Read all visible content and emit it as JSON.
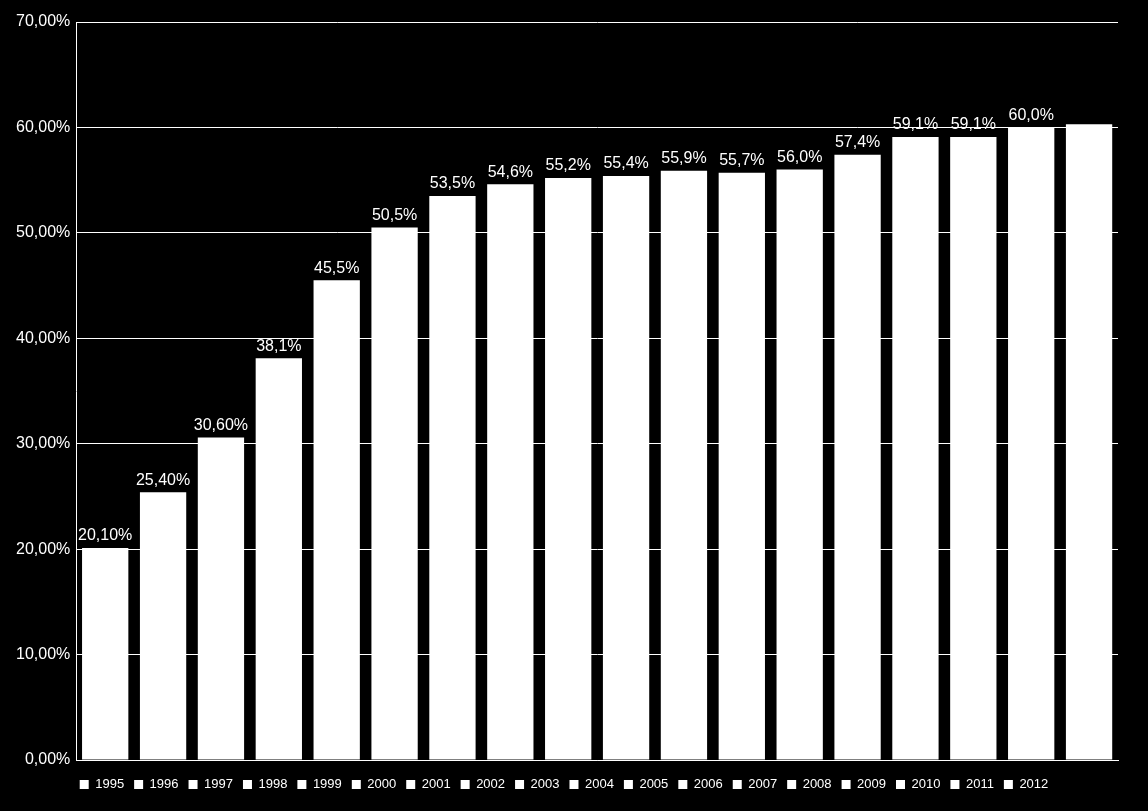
{
  "chart_data": {
    "type": "bar",
    "categories": [
      "1995",
      "1996",
      "1997",
      "1998",
      "1999",
      "2000",
      "2001",
      "2002",
      "2003",
      "2004",
      "2005",
      "2006",
      "2007",
      "2008",
      "2009",
      "2010",
      "2011",
      "2012"
    ],
    "values": [
      20.1,
      25.4,
      30.6,
      38.1,
      45.5,
      50.5,
      53.5,
      54.6,
      55.2,
      55.4,
      55.9,
      55.7,
      56.0,
      57.4,
      59.1,
      59.1,
      60.0,
      60.3
    ],
    "value_labels": [
      "20,10%",
      "25,40%",
      "30,60%",
      "38,1%",
      "45,5%",
      "50,5%",
      "53,5%",
      "54,6%",
      "55,2%",
      "55,4%",
      "55,9%",
      "55,7%",
      "56,0%",
      "57,4%",
      "59,1%",
      "59,1%",
      "60,0%",
      null
    ],
    "color": "#ffffff",
    "ylim": [
      0,
      70
    ],
    "yticks": [
      {
        "value": 0,
        "label": "0,00%"
      },
      {
        "value": 10,
        "label": "10,00%"
      },
      {
        "value": 20,
        "label": "20,00%"
      },
      {
        "value": 30,
        "label": "30,00%"
      },
      {
        "value": 40,
        "label": "40,00%"
      },
      {
        "value": 50,
        "label": "50,00%"
      },
      {
        "value": 60,
        "label": "60,00%"
      },
      {
        "value": 70,
        "label": "70,00%"
      }
    ],
    "grid": true,
    "legend": "bottom",
    "data_labels": true,
    "tick_labels": "y"
  }
}
